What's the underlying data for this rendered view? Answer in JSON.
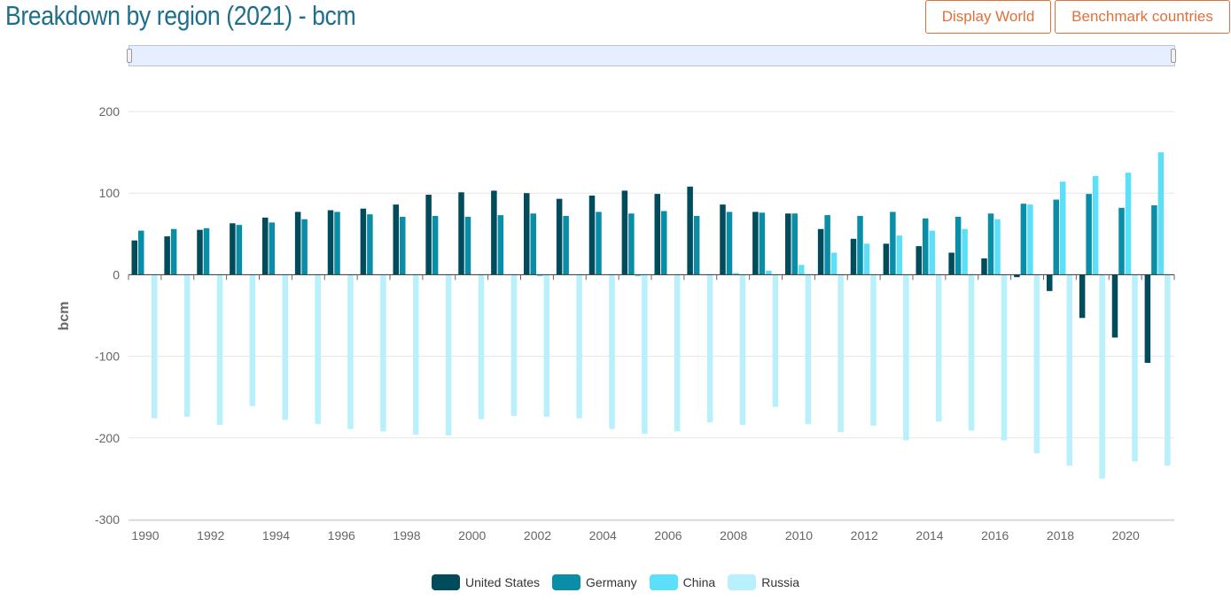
{
  "header": {
    "title": "Breakdown by region (2021) - bcm",
    "display_world_label": "Display World",
    "benchmark_label": "Benchmark countries"
  },
  "colors": {
    "United States": "#004c5c",
    "Germany": "#0a8ea8",
    "China": "#5ce0fa",
    "Russia": "#b8f0fb",
    "title": "#1f6e8c",
    "button": "#e0703a"
  },
  "chart_data": {
    "type": "bar",
    "title": "Breakdown by region (2021) - bcm",
    "ylabel": "bcm",
    "xlabel": "",
    "ylim": [
      -300,
      200
    ],
    "yticks": [
      200,
      100,
      0,
      -100,
      -200,
      -300
    ],
    "xtick_labels": [
      "1990",
      "1992",
      "1994",
      "1996",
      "1998",
      "2000",
      "2002",
      "2004",
      "2006",
      "2008",
      "2010",
      "2012",
      "2014",
      "2016",
      "2018",
      "2020"
    ],
    "grid": true,
    "legend_position": "bottom",
    "categories": [
      "1990",
      "1991",
      "1992",
      "1993",
      "1994",
      "1995",
      "1996",
      "1997",
      "1998",
      "1999",
      "2000",
      "2001",
      "2002",
      "2003",
      "2004",
      "2005",
      "2006",
      "2007",
      "2008",
      "2009",
      "2010",
      "2011",
      "2012",
      "2013",
      "2014",
      "2015",
      "2016",
      "2017",
      "2018",
      "2019",
      "2020",
      "2021"
    ],
    "series": [
      {
        "name": "United States",
        "values": [
          42,
          47,
          55,
          63,
          70,
          77,
          79,
          81,
          86,
          98,
          101,
          103,
          100,
          93,
          97,
          103,
          99,
          108,
          86,
          77,
          75,
          56,
          44,
          38,
          35,
          27,
          20,
          -3,
          -20,
          -53,
          -77,
          -108
        ]
      },
      {
        "name": "Germany",
        "values": [
          54,
          56,
          57,
          61,
          64,
          68,
          77,
          74,
          71,
          72,
          71,
          73,
          75,
          72,
          77,
          75,
          78,
          72,
          77,
          76,
          75,
          73,
          72,
          77,
          69,
          71,
          75,
          87,
          92,
          99,
          82,
          85
        ]
      },
      {
        "name": "China",
        "values": [
          0,
          0,
          0,
          0,
          0,
          0,
          0,
          0,
          0,
          0,
          0,
          0,
          -2,
          0,
          0,
          -2,
          0,
          0,
          2,
          5,
          12,
          27,
          38,
          48,
          54,
          56,
          68,
          86,
          114,
          121,
          125,
          150
        ]
      },
      {
        "name": "Russia",
        "values": [
          -176,
          -174,
          -184,
          -161,
          -178,
          -183,
          -189,
          -192,
          -196,
          -197,
          -177,
          -173,
          -174,
          -176,
          -189,
          -195,
          -192,
          -181,
          -184,
          -162,
          -183,
          -193,
          -185,
          -203,
          -180,
          -191,
          -203,
          -219,
          -234,
          -250,
          -229,
          -234
        ]
      }
    ]
  }
}
